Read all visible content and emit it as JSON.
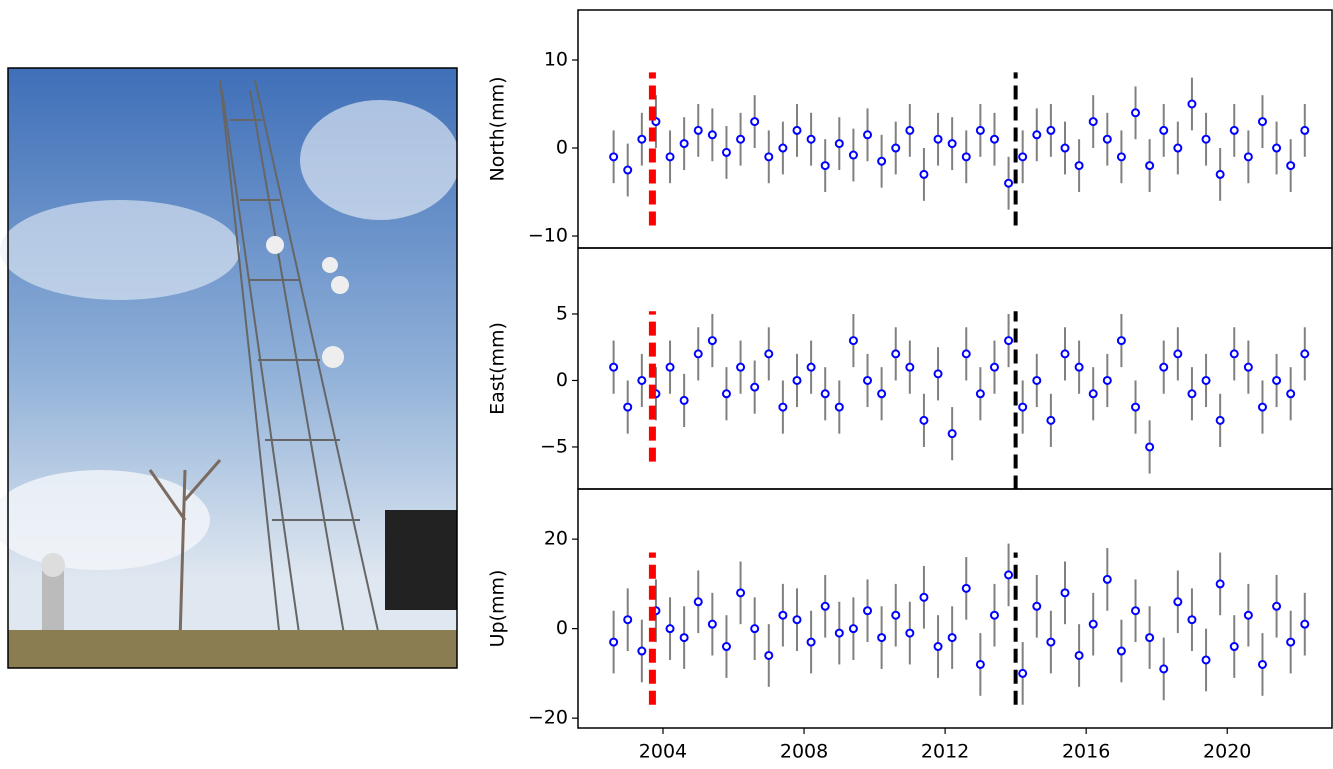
{
  "chart_data": [
    {
      "type": "scatter",
      "ylabel": "North(mm)",
      "marker_color": "#0000ff",
      "error_color": "#808080",
      "x": [
        2002.6,
        2003.0,
        2003.4,
        2003.8,
        2004.2,
        2004.6,
        2005.0,
        2005.4,
        2005.8,
        2006.2,
        2006.6,
        2007.0,
        2007.4,
        2007.8,
        2008.2,
        2008.6,
        2009.0,
        2009.4,
        2009.8,
        2010.2,
        2010.6,
        2011.0,
        2011.4,
        2011.8,
        2012.2,
        2012.6,
        2013.0,
        2013.4,
        2013.8,
        2014.2,
        2014.6,
        2015.0,
        2015.4,
        2015.8,
        2016.2,
        2016.6,
        2017.0,
        2017.4,
        2017.8,
        2018.2,
        2018.6,
        2019.0,
        2019.4,
        2019.8,
        2020.2,
        2020.6,
        2021.0,
        2021.4,
        2021.8,
        2022.2
      ],
      "values": [
        -1,
        -2.5,
        1,
        3,
        -1,
        0.5,
        2,
        1.5,
        -0.5,
        1,
        3,
        -1,
        0,
        2,
        1,
        -2,
        0.5,
        -0.8,
        1.5,
        -1.5,
        0,
        2,
        -3,
        1,
        0.5,
        -1,
        2,
        1,
        -4,
        -1,
        1.5,
        2,
        0,
        -2,
        3,
        1,
        -1,
        4,
        -2,
        2,
        0,
        5,
        1,
        -3,
        2,
        -1,
        3,
        0,
        -2,
        2
      ],
      "error": 3,
      "xlim": [
        2001.59,
        2023.0
      ],
      "ylim": [
        -11.36,
        15.68
      ],
      "yticks": [
        {
          "value": -10,
          "label": "−10"
        },
        0,
        10
      ],
      "events": [
        {
          "x": 2003.7,
          "color": "#ff0000",
          "y_range": [
            -8.8,
            8.6
          ]
        },
        {
          "x": 2014.0,
          "color": "#000000",
          "y_range": [
            -8.8,
            8.6
          ]
        }
      ]
    },
    {
      "type": "scatter",
      "ylabel": "East(mm)",
      "marker_color": "#0000ff",
      "error_color": "#808080",
      "x": [
        2002.6,
        2003.0,
        2003.4,
        2003.8,
        2004.2,
        2004.6,
        2005.0,
        2005.4,
        2005.8,
        2006.2,
        2006.6,
        2007.0,
        2007.4,
        2007.8,
        2008.2,
        2008.6,
        2009.0,
        2009.4,
        2009.8,
        2010.2,
        2010.6,
        2011.0,
        2011.4,
        2011.8,
        2012.2,
        2012.6,
        2013.0,
        2013.4,
        2013.8,
        2014.2,
        2014.6,
        2015.0,
        2015.4,
        2015.8,
        2016.2,
        2016.6,
        2017.0,
        2017.4,
        2017.8,
        2018.2,
        2018.6,
        2019.0,
        2019.4,
        2019.8,
        2020.2,
        2020.6,
        2021.0,
        2021.4,
        2021.8,
        2022.2
      ],
      "values": [
        1,
        -2,
        0,
        -1,
        1,
        -1.5,
        2,
        3,
        -1,
        1,
        -0.5,
        2,
        -2,
        0,
        1,
        -1,
        -2,
        3,
        0,
        -1,
        2,
        1,
        -3,
        0.5,
        -4,
        2,
        -1,
        1,
        3,
        -2,
        0,
        -3,
        2,
        1,
        -1,
        0,
        3,
        -2,
        -5,
        1,
        2,
        -1,
        0,
        -3,
        2,
        1,
        -2,
        0,
        -1,
        2
      ],
      "error": 2,
      "xlim": [
        2001.59,
        2023.0
      ],
      "ylim": [
        -8.16,
        9.96
      ],
      "yticks": [
        {
          "value": -5,
          "label": "−5"
        },
        0,
        5
      ],
      "events": [
        {
          "x": 2003.7,
          "color": "#ff0000",
          "y_range": [
            -6.1,
            5.2
          ]
        },
        {
          "x": 2014.0,
          "color": "#000000",
          "y_range": [
            -8.2,
            5.2
          ]
        }
      ]
    },
    {
      "type": "scatter",
      "ylabel": "Up(mm)",
      "marker_color": "#0000ff",
      "error_color": "#808080",
      "x": [
        2002.6,
        2003.0,
        2003.4,
        2003.8,
        2004.2,
        2004.6,
        2005.0,
        2005.4,
        2005.8,
        2006.2,
        2006.6,
        2007.0,
        2007.4,
        2007.8,
        2008.2,
        2008.6,
        2009.0,
        2009.4,
        2009.8,
        2010.2,
        2010.6,
        2011.0,
        2011.4,
        2011.8,
        2012.2,
        2012.6,
        2013.0,
        2013.4,
        2013.8,
        2014.2,
        2014.6,
        2015.0,
        2015.4,
        2015.8,
        2016.2,
        2016.6,
        2017.0,
        2017.4,
        2017.8,
        2018.2,
        2018.6,
        2019.0,
        2019.4,
        2019.8,
        2020.2,
        2020.6,
        2021.0,
        2021.4,
        2021.8,
        2022.2
      ],
      "values": [
        -3,
        2,
        -5,
        4,
        0,
        -2,
        6,
        1,
        -4,
        8,
        0,
        -6,
        3,
        2,
        -3,
        5,
        -1,
        0,
        4,
        -2,
        3,
        -1,
        7,
        -4,
        -2,
        9,
        -8,
        3,
        12,
        -10,
        5,
        -3,
        8,
        -6,
        1,
        11,
        -5,
        4,
        -2,
        -9,
        6,
        2,
        -7,
        10,
        -4,
        3,
        -8,
        5,
        -3,
        1
      ],
      "error": 7,
      "xlim": [
        2001.59,
        2023.0
      ],
      "ylim": [
        -22.2,
        31.2
      ],
      "yticks": [
        {
          "value": -20,
          "label": "−20"
        },
        0,
        20
      ],
      "xticks": [
        2004,
        2008,
        2012,
        2016,
        2020
      ],
      "events": [
        {
          "x": 2003.7,
          "color": "#ff0000",
          "y_range": [
            -17,
            17
          ]
        },
        {
          "x": 2014.0,
          "color": "#000000",
          "y_range": [
            -17,
            17
          ]
        }
      ]
    }
  ]
}
